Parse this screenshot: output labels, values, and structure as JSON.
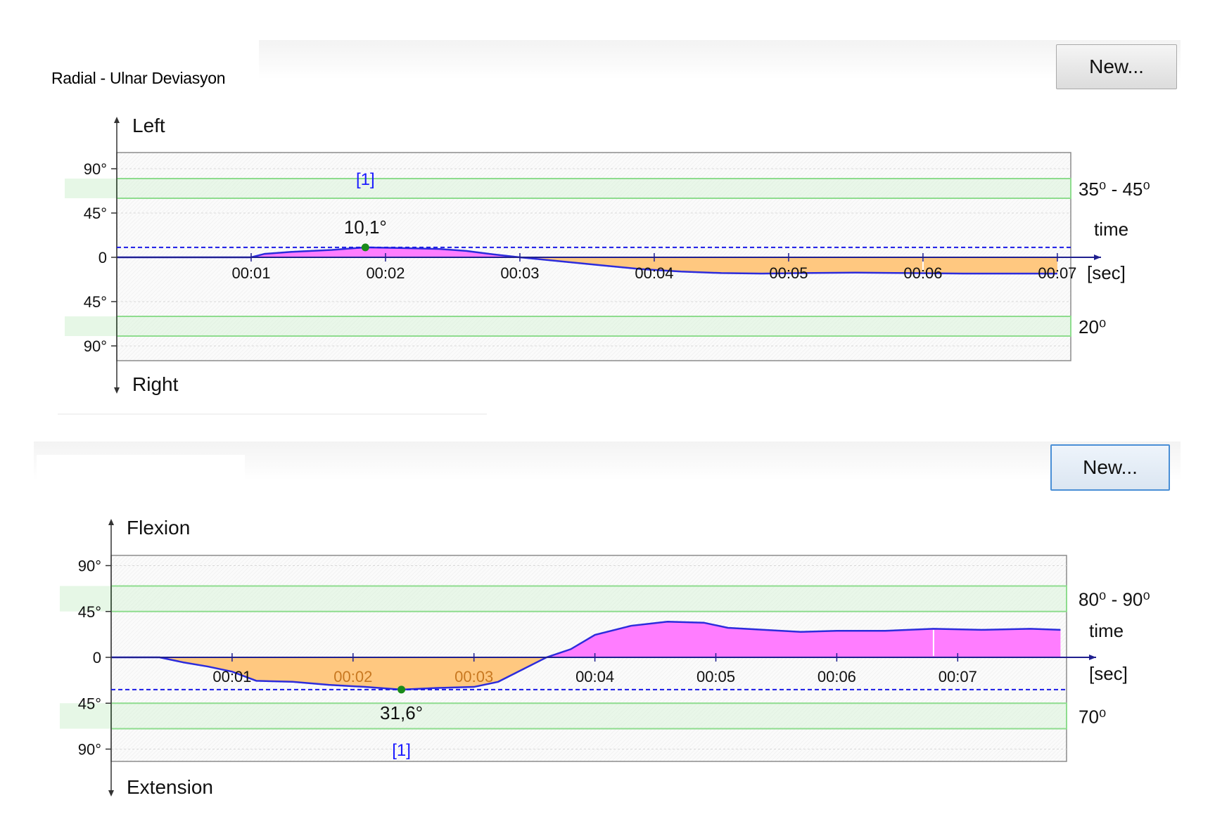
{
  "header": {
    "title": "Radial - Ulnar Deviasyon"
  },
  "buttons": {
    "new_top": "New...",
    "new_bottom": "New..."
  },
  "colors": {
    "positive_fill": "#ff7dff",
    "negative_fill": "#ffc880",
    "line": "#2c2cdc",
    "range_band": "#8edc8e",
    "peak_line": "#1a1ae6",
    "peak_marker": "#1a8a1a",
    "peak_tag": "#1a1aff"
  },
  "chart_data": [
    {
      "type": "area",
      "y_axis_label_top": "Left",
      "y_axis_label_bottom": "Right",
      "x_axis_label": "time",
      "x_unit": "[sec]",
      "x_ticks": [
        "00:01",
        "00:02",
        "00:03",
        "00:04",
        "00:05",
        "00:06",
        "00:07"
      ],
      "x_tick_values": [
        1,
        2,
        3,
        4,
        5,
        6,
        7
      ],
      "y_ticks": [
        "90°",
        "45°",
        "0",
        "45°",
        "90°"
      ],
      "y_tick_values": [
        90,
        45,
        0,
        -45,
        -90
      ],
      "ylim": [
        -100,
        100
      ],
      "xlim": [
        0,
        7.1
      ],
      "normal_range_top": {
        "label": "35⁰ - 45⁰",
        "from": 60,
        "to": 80
      },
      "normal_range_bottom": {
        "label": "20⁰",
        "from": -60,
        "to": -80
      },
      "peak": {
        "label": "10,1°",
        "x": 1.85,
        "y": 10.1,
        "tag": "[1]"
      },
      "x": [
        0,
        0.5,
        0.9,
        1.0,
        1.1,
        1.3,
        1.6,
        1.85,
        2.1,
        2.4,
        2.6,
        2.8,
        3.0,
        3.3,
        3.6,
        3.9,
        4.2,
        4.5,
        4.8,
        5.1,
        5.5,
        5.9,
        6.3,
        6.7,
        7.0
      ],
      "y": [
        0,
        0,
        0,
        0,
        3.5,
        5.5,
        7.5,
        10.1,
        9.5,
        8.5,
        6.5,
        3.0,
        0,
        -4,
        -8,
        -12,
        -14.5,
        -16,
        -16.5,
        -16,
        -15.5,
        -16,
        -16.5,
        -16.5,
        -16.5
      ]
    },
    {
      "type": "area",
      "y_axis_label_top": "Flexion",
      "y_axis_label_bottom": "Extension",
      "x_axis_label": "time",
      "x_unit": "[sec]",
      "x_ticks": [
        "00:01",
        "00:02",
        "00:03",
        "00:04",
        "00:05",
        "00:06",
        "00:07"
      ],
      "x_tick_values": [
        1,
        2,
        3,
        4,
        5,
        6,
        7
      ],
      "y_ticks": [
        "90°",
        "45°",
        "0",
        "45°",
        "90°"
      ],
      "y_tick_values": [
        90,
        45,
        0,
        -45,
        -90
      ],
      "ylim": [
        -100,
        100
      ],
      "xlim": [
        0,
        7.9
      ],
      "normal_range_top": {
        "label": "80⁰ - 90⁰",
        "from": 45,
        "to": 70
      },
      "normal_range_bottom": {
        "label": "70⁰",
        "from": -45,
        "to": -70
      },
      "peak": {
        "label": "31,6°",
        "x": 2.4,
        "y": -31.6,
        "tag": "[1]"
      },
      "x": [
        0,
        0.4,
        0.6,
        0.8,
        1.0,
        1.2,
        1.5,
        1.8,
        2.1,
        2.4,
        2.7,
        3.0,
        3.2,
        3.4,
        3.6,
        3.8,
        4.0,
        4.3,
        4.6,
        4.9,
        5.1,
        5.4,
        5.7,
        6.0,
        6.4,
        6.8,
        7.2,
        7.6,
        7.85
      ],
      "y": [
        0,
        0,
        -5,
        -9,
        -14,
        -23,
        -24,
        -27,
        -29,
        -31.6,
        -30,
        -29,
        -24,
        -12,
        0,
        8,
        22,
        31,
        35,
        34,
        29,
        27,
        25,
        26,
        26,
        28,
        27,
        28,
        27
      ]
    }
  ]
}
